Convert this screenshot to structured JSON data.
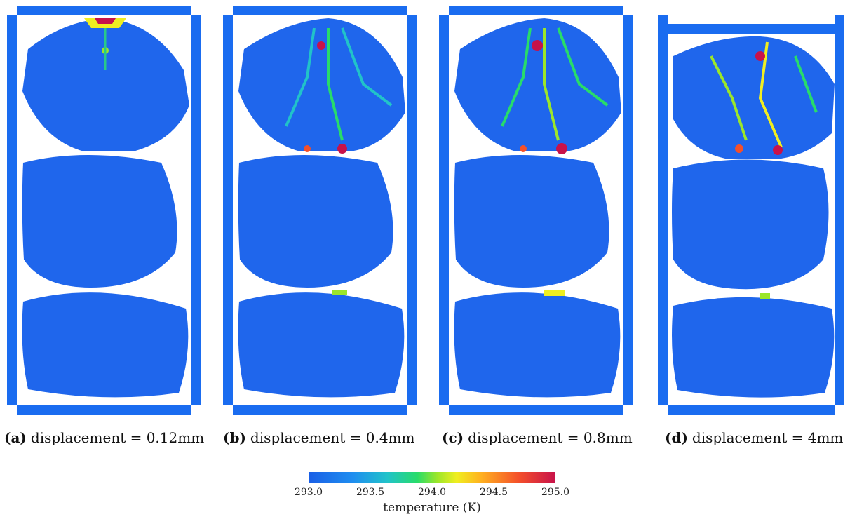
{
  "figure": {
    "panels": [
      {
        "tag": "(a)",
        "caption": "displacement = 0.12mm"
      },
      {
        "tag": "(b)",
        "caption": "displacement = 0.4mm"
      },
      {
        "tag": "(c)",
        "caption": "displacement = 0.8mm"
      },
      {
        "tag": "(d)",
        "caption": "displacement = 4mm"
      }
    ],
    "colorbar": {
      "ticks": [
        "293.0",
        "293.5",
        "294.0",
        "294.5",
        "295.0"
      ],
      "title": "temperature (K)",
      "colors": [
        "#1a5fe6",
        "#21c3c9",
        "#28dc6a",
        "#f0ee20",
        "#f4502a",
        "#c8124a"
      ]
    }
  }
}
